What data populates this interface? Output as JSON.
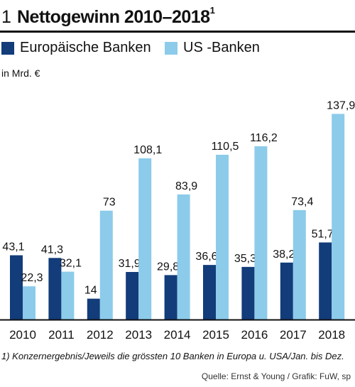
{
  "header": {
    "figure_number": "1",
    "title": "Nettogewinn 2010–2018",
    "title_footnote_mark": "1"
  },
  "unit_label": "in Mrd. €",
  "footnote": "1) Konzernergebnis/Jeweils die grössten 10 Banken in Europa u. USA/Jan. bis Dez.",
  "source": "Quelle: Ernst & Young / Grafik: FuW, sp",
  "colors": {
    "europe": "#123c7a",
    "us": "#8ccbea",
    "axis": "#111111"
  },
  "chart_data": {
    "type": "bar",
    "title": "Nettogewinn 2010–2018",
    "ylabel": "in Mrd. €",
    "xlabel": "",
    "categories": [
      "2010",
      "2011",
      "2012",
      "2013",
      "2014",
      "2015",
      "2016",
      "2017",
      "2018"
    ],
    "series": [
      {
        "name": "Europäische Banken",
        "values": [
          43.1,
          41.3,
          14,
          31.9,
          29.8,
          36.6,
          35.3,
          38.2,
          51.7
        ],
        "labels": [
          "43,1",
          "41,3",
          "14",
          "31,9",
          "29,8",
          "36,6",
          "35,3",
          "38,2",
          "51,7"
        ]
      },
      {
        "name": "US -Banken",
        "values": [
          22.3,
          32.1,
          73,
          108.1,
          83.9,
          110.5,
          116.2,
          73.4,
          137.9
        ],
        "labels": [
          "22,3",
          "32,1",
          "73",
          "108,1",
          "83,9",
          "110,5",
          "116,2",
          "73,4",
          "137,9"
        ]
      }
    ],
    "ylim": [
      0,
      140
    ],
    "grid": false,
    "legend": "top-left"
  }
}
